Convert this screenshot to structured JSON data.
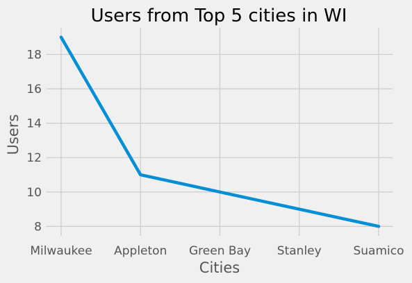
{
  "chart_data": {
    "type": "line",
    "title": "Users from Top 5 cities in WI",
    "xlabel": "Cities",
    "ylabel": "Users",
    "categories": [
      "Milwaukee",
      "Appleton",
      "Green Bay",
      "Stanley",
      "Suamico"
    ],
    "series": [
      {
        "values": [
          19,
          11,
          10,
          9,
          8
        ],
        "color": "#008fd5"
      }
    ],
    "ylim": [
      7.45,
      19.55
    ],
    "yticks": [
      "8",
      "10",
      "12",
      "14",
      "16",
      "18"
    ],
    "grid": true,
    "legend": "none"
  }
}
